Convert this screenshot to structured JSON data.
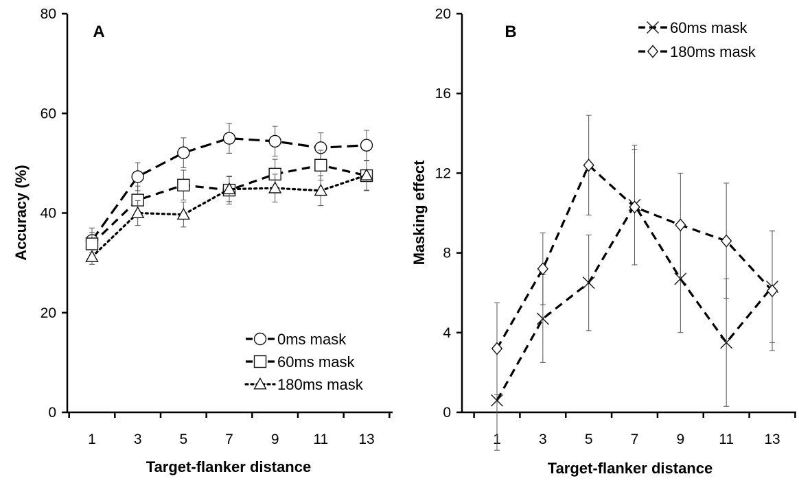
{
  "chart_data": [
    {
      "type": "line",
      "panel_label": "A",
      "xlabel": "Target-flanker distance",
      "ylabel": "Accuracy (%)",
      "x": [
        1,
        3,
        5,
        7,
        9,
        11,
        13
      ],
      "xticks": [
        "1",
        "3",
        "5",
        "7",
        "9",
        "11",
        "13"
      ],
      "ylim": [
        0,
        80
      ],
      "yticks": [
        "0",
        "20",
        "40",
        "60",
        "80"
      ],
      "grid": false,
      "legend_position": "bottom-right",
      "series": [
        {
          "name": "0ms mask",
          "marker": "circle",
          "dash": "long-dash",
          "values": [
            34.5,
            47.3,
            52.1,
            55.0,
            54.4,
            53.1,
            53.6
          ],
          "errors": [
            2.5,
            2.8,
            3.0,
            3.0,
            3.0,
            3.0,
            3.0
          ]
        },
        {
          "name": "60ms mask",
          "marker": "square",
          "dash": "dash",
          "values": [
            33.8,
            42.6,
            45.6,
            44.6,
            47.8,
            49.6,
            47.5
          ],
          "errors": [
            2.3,
            2.8,
            3.0,
            2.8,
            3.0,
            3.0,
            3.0
          ]
        },
        {
          "name": "180ms mask",
          "marker": "triangle",
          "dash": "dot",
          "values": [
            31.2,
            40.0,
            39.7,
            44.8,
            45.0,
            44.5,
            47.6
          ],
          "errors": [
            1.5,
            2.5,
            2.5,
            2.5,
            2.8,
            3.0,
            3.0
          ]
        }
      ]
    },
    {
      "type": "line",
      "panel_label": "B",
      "xlabel": "Target-flanker distance",
      "ylabel": "Masking effect",
      "x": [
        1,
        3,
        5,
        7,
        9,
        11,
        13
      ],
      "xticks": [
        "1",
        "3",
        "5",
        "7",
        "9",
        "11",
        "13"
      ],
      "ylim": [
        0,
        20
      ],
      "yticks": [
        "0",
        "4",
        "8",
        "12",
        "16",
        "20"
      ],
      "grid": false,
      "legend_position": "top-right",
      "series": [
        {
          "name": "60ms mask",
          "marker": "x",
          "dash": "dash",
          "values": [
            0.6,
            4.7,
            6.5,
            10.4,
            6.7,
            3.5,
            6.3
          ],
          "errors": [
            2.5,
            2.2,
            2.4,
            3.0,
            2.7,
            3.2,
            2.8
          ]
        },
        {
          "name": "180ms mask",
          "marker": "diamond",
          "dash": "dash",
          "values": [
            3.2,
            7.2,
            12.4,
            10.3,
            9.4,
            8.6,
            6.1
          ],
          "errors": [
            2.3,
            1.8,
            2.5,
            2.9,
            2.6,
            2.9,
            3.0
          ]
        }
      ]
    }
  ]
}
